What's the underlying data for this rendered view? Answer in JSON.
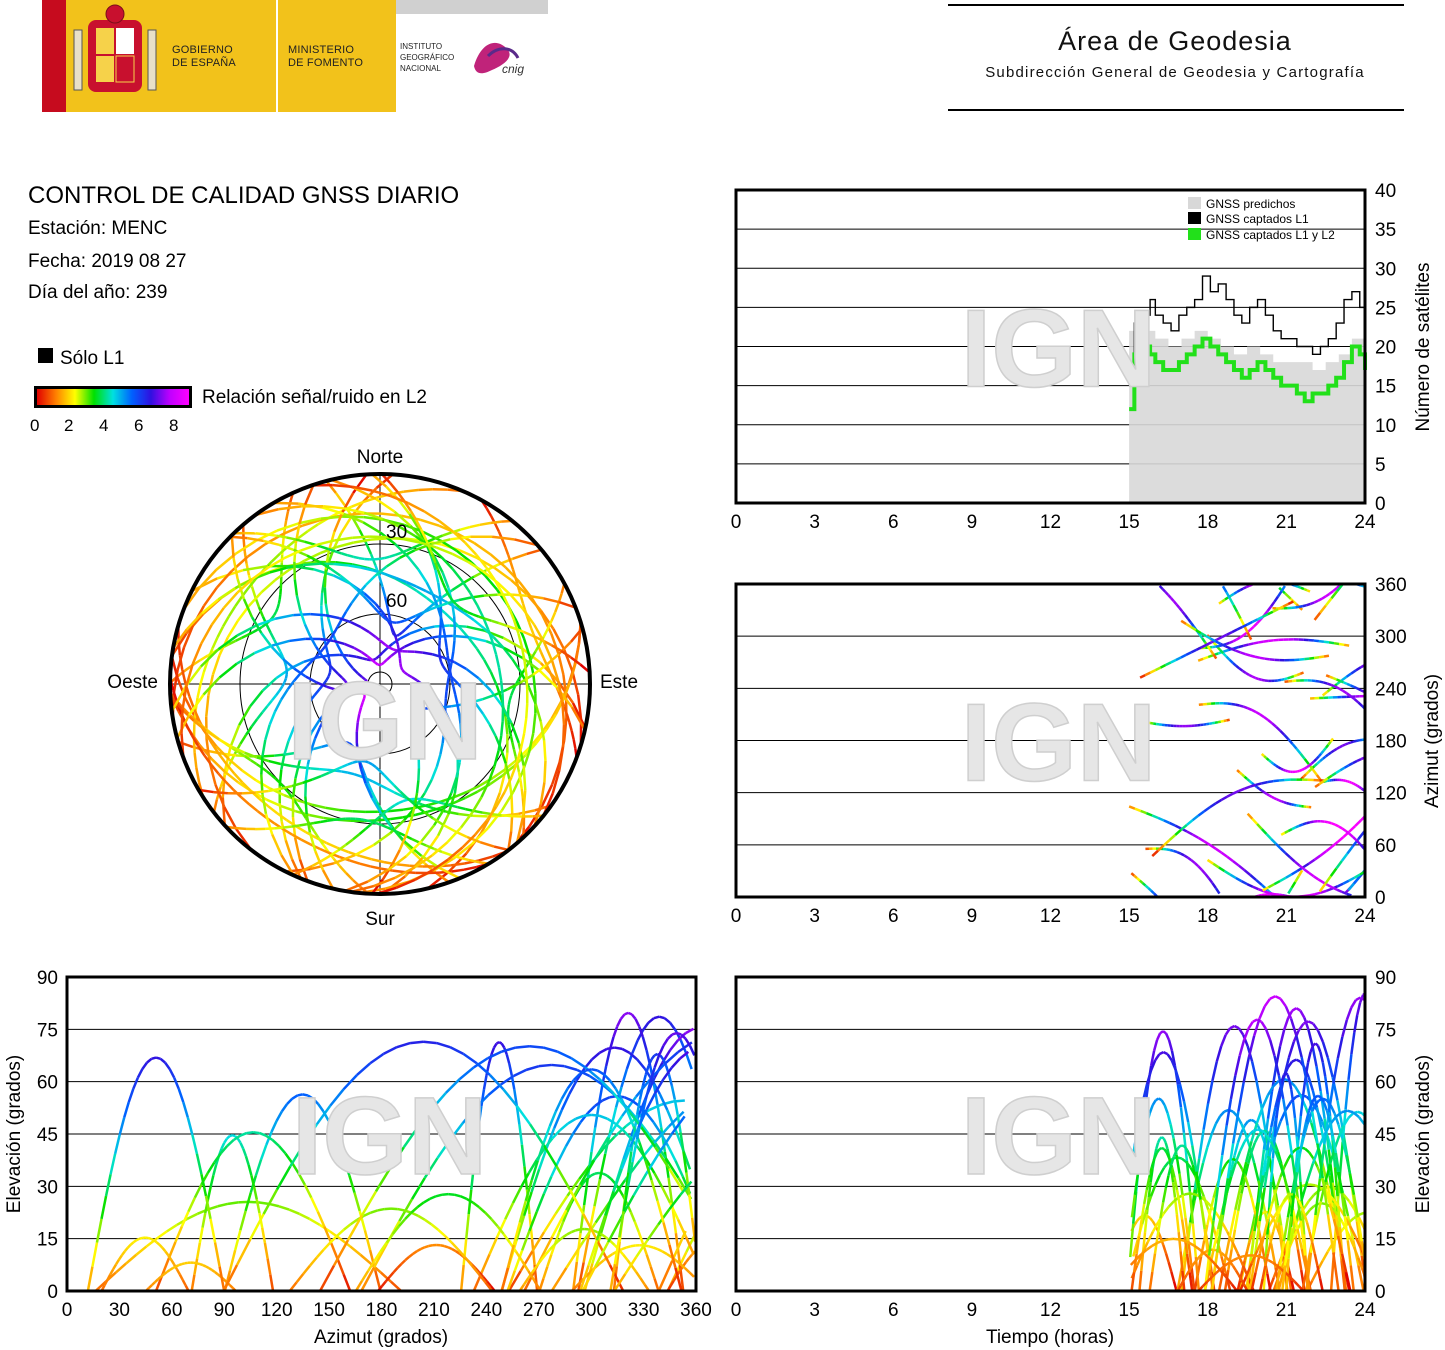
{
  "header": {
    "gobierno": "GOBIERNO\nDE ESPAÑA",
    "gobierno_l1": "GOBIERNO",
    "gobierno_l2": "DE ESPAÑA",
    "ministerio_l1": "MINISTERIO",
    "ministerio_l2": "DE FOMENTO",
    "ign_l1": "INSTITUTO",
    "ign_l2": "GEOGRÁFICO",
    "ign_l3": "NACIONAL",
    "cnig": "cnig",
    "area": "Área de Geodesia",
    "subdireccion": "Subdirección General de Geodesia y Cartografía"
  },
  "info": {
    "title": "CONTROL DE CALIDAD GNSS DIARIO",
    "estacion": "Estación: MENC",
    "fecha": "Fecha: 2019 08 27",
    "dia": "Día del año: 239"
  },
  "legend": {
    "solo_l1": "Sólo L1",
    "snr_label": "Relación señal/ruido en L2",
    "scale_ticks": [
      "0",
      "2",
      "4",
      "6",
      "8"
    ]
  },
  "watermark": "IGN",
  "colors": {
    "predicted": "#d8d8d8",
    "l1": "#000000",
    "l1l2": "#22e01a",
    "snr_gradient": [
      "#e00000",
      "#ff8000",
      "#ffff00",
      "#00e000",
      "#00e0e0",
      "#0060ff",
      "#3010e0",
      "#c000ff",
      "#ff00ff"
    ]
  },
  "chart_data": [
    {
      "type": "line",
      "id": "satellite_count",
      "ylabel": "Número de satélites",
      "xlabel": "",
      "xlim": [
        0,
        24
      ],
      "ylim": [
        0,
        40
      ],
      "xticks": [
        "0",
        "3",
        "6",
        "9",
        "12",
        "15",
        "18",
        "21",
        "24"
      ],
      "yticks": [
        "0",
        "5",
        "10",
        "15",
        "20",
        "25",
        "30",
        "35",
        "40"
      ],
      "grid": true,
      "legend_position": "top-right",
      "legend": [
        "GNSS predichos",
        "GNSS captados L1",
        "GNSS captados L1 y L2"
      ],
      "series": [
        {
          "name": "GNSS predichos",
          "x": [
            15,
            15.5,
            16,
            16.5,
            17,
            17.5,
            18,
            18.5,
            19,
            19.5,
            20,
            20.5,
            21,
            21.5,
            22,
            22.5,
            23,
            23.5,
            24
          ],
          "values": [
            22,
            22,
            21,
            20,
            21,
            22,
            21,
            20,
            19,
            20,
            19,
            18,
            18,
            18,
            17,
            18,
            19,
            21,
            22
          ]
        },
        {
          "name": "GNSS captados L1",
          "x": [
            15,
            15.2,
            15.5,
            15.8,
            16,
            16.3,
            16.6,
            16.9,
            17.2,
            17.5,
            17.8,
            18.1,
            18.4,
            18.7,
            19,
            19.3,
            19.6,
            19.9,
            20.2,
            20.5,
            20.8,
            21.1,
            21.4,
            21.7,
            22,
            22.3,
            22.6,
            22.9,
            23.2,
            23.5,
            23.8,
            24
          ],
          "values": [
            15,
            23,
            24,
            26,
            24,
            23,
            22,
            24,
            25,
            26,
            29,
            27,
            28,
            26,
            24,
            23,
            25,
            26,
            24,
            22,
            21,
            21,
            20,
            20,
            19,
            20,
            21,
            23,
            26,
            27,
            25,
            24
          ]
        },
        {
          "name": "GNSS captados L1 y L2",
          "x": [
            15,
            15.2,
            15.5,
            15.8,
            16,
            16.3,
            16.6,
            16.9,
            17.2,
            17.5,
            17.8,
            18.1,
            18.4,
            18.7,
            19,
            19.3,
            19.6,
            19.9,
            20.2,
            20.5,
            20.8,
            21.1,
            21.4,
            21.7,
            22,
            22.3,
            22.6,
            22.9,
            23.2,
            23.5,
            23.8,
            24
          ],
          "values": [
            12,
            19,
            20,
            19,
            18,
            17,
            17,
            18,
            19,
            20,
            21,
            20,
            19,
            18,
            17,
            16,
            17,
            18,
            17,
            16,
            15,
            15,
            14,
            13,
            14,
            14,
            15,
            16,
            18,
            20,
            19,
            17
          ]
        }
      ]
    },
    {
      "type": "scatter",
      "id": "azimuth_time",
      "ylabel": "Azimut (grados)",
      "xlim": [
        0,
        24
      ],
      "ylim": [
        0,
        360
      ],
      "xticks": [
        "0",
        "3",
        "6",
        "9",
        "12",
        "15",
        "18",
        "21",
        "24"
      ],
      "yticks": [
        "0",
        "60",
        "120",
        "180",
        "240",
        "300",
        "360"
      ],
      "grid": true,
      "note_data_range_hours": [
        15,
        24
      ]
    },
    {
      "type": "scatter",
      "id": "skyplot",
      "polar": true,
      "directions": {
        "north": "Norte",
        "south": "Sur",
        "east": "Este",
        "west": "Oeste"
      },
      "ring_labels": [
        "30",
        "60"
      ]
    },
    {
      "type": "scatter",
      "id": "elevation_azimuth",
      "xlabel": "Azimut (grados)",
      "ylabel": "Elevación (grados)",
      "xlim": [
        0,
        360
      ],
      "ylim": [
        0,
        90
      ],
      "xticks": [
        "0",
        "30",
        "60",
        "90",
        "120",
        "150",
        "180",
        "210",
        "240",
        "270",
        "300",
        "330",
        "360"
      ],
      "yticks": [
        "0",
        "15",
        "30",
        "45",
        "60",
        "75",
        "90"
      ],
      "grid": true
    },
    {
      "type": "scatter",
      "id": "elevation_time",
      "xlabel": "Tiempo (horas)",
      "ylabel": "Elevación (grados)",
      "xlim": [
        0,
        24
      ],
      "ylim": [
        0,
        90
      ],
      "xticks": [
        "0",
        "3",
        "6",
        "9",
        "12",
        "15",
        "18",
        "21",
        "24"
      ],
      "yticks": [
        "0",
        "15",
        "30",
        "45",
        "60",
        "75",
        "90"
      ],
      "grid": true
    }
  ]
}
